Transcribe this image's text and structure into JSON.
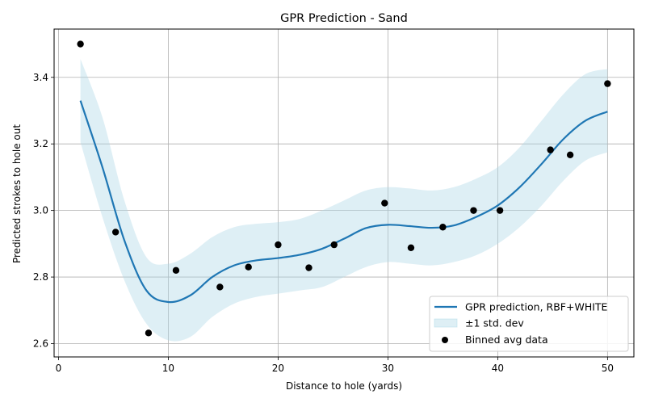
{
  "chart_data": {
    "type": "line",
    "title": "GPR Prediction - Sand",
    "xlabel": "Distance to hole (yards)",
    "ylabel": "Predicted strokes to hole out",
    "xlim": [
      -0.4,
      52.4
    ],
    "ylim": [
      2.56,
      3.545
    ],
    "x_ticks": [
      0,
      10,
      20,
      30,
      40,
      50
    ],
    "y_ticks": [
      2.6,
      2.8,
      3.0,
      3.2,
      3.4
    ],
    "x_tick_labels": [
      "0",
      "10",
      "20",
      "30",
      "40",
      "50"
    ],
    "y_tick_labels": [
      "2.6",
      "2.8",
      "3.0",
      "3.2",
      "3.4"
    ],
    "grid": true,
    "legend_position": "lower-right",
    "series": [
      {
        "name": "GPR prediction, RBF+WHITE",
        "kind": "line",
        "color": "#1f77b4",
        "x": [
          2,
          4,
          6,
          8,
          10,
          12,
          14,
          16,
          18,
          20,
          22,
          24,
          26,
          28,
          30,
          32,
          34,
          36,
          38,
          40,
          42,
          44,
          46,
          48,
          50
        ],
        "y": [
          3.33,
          3.13,
          2.91,
          2.76,
          2.725,
          2.745,
          2.8,
          2.835,
          2.85,
          2.857,
          2.867,
          2.885,
          2.915,
          2.947,
          2.957,
          2.953,
          2.948,
          2.955,
          2.98,
          3.015,
          3.07,
          3.14,
          3.215,
          3.27,
          3.297
        ]
      },
      {
        "name": "±1 std. dev",
        "kind": "band",
        "color": "#add8e6",
        "x": [
          2,
          4,
          6,
          8,
          10,
          12,
          14,
          16,
          18,
          20,
          22,
          24,
          26,
          28,
          30,
          32,
          34,
          36,
          38,
          40,
          42,
          44,
          46,
          48,
          50
        ],
        "upper": [
          3.455,
          3.28,
          3.03,
          2.86,
          2.84,
          2.87,
          2.92,
          2.95,
          2.96,
          2.965,
          2.975,
          3.0,
          3.03,
          3.06,
          3.07,
          3.066,
          3.06,
          3.07,
          3.095,
          3.13,
          3.19,
          3.27,
          3.35,
          3.41,
          3.425
        ],
        "lower": [
          3.205,
          2.98,
          2.79,
          2.66,
          2.61,
          2.62,
          2.68,
          2.72,
          2.74,
          2.75,
          2.76,
          2.77,
          2.8,
          2.83,
          2.845,
          2.84,
          2.835,
          2.845,
          2.865,
          2.9,
          2.95,
          3.015,
          3.09,
          3.15,
          3.175
        ]
      },
      {
        "name": "Binned avg data",
        "kind": "scatter",
        "color": "#000000",
        "x": [
          2,
          5.2,
          8.2,
          10.7,
          14.7,
          17.3,
          20,
          22.8,
          25.1,
          29.7,
          32.1,
          35,
          37.8,
          40.2,
          44.8,
          46.6,
          50
        ],
        "y": [
          3.5,
          2.935,
          2.632,
          2.82,
          2.77,
          2.83,
          2.897,
          2.828,
          2.897,
          3.022,
          2.888,
          2.95,
          3.0,
          3.0,
          3.182,
          3.167,
          3.381
        ]
      }
    ]
  }
}
